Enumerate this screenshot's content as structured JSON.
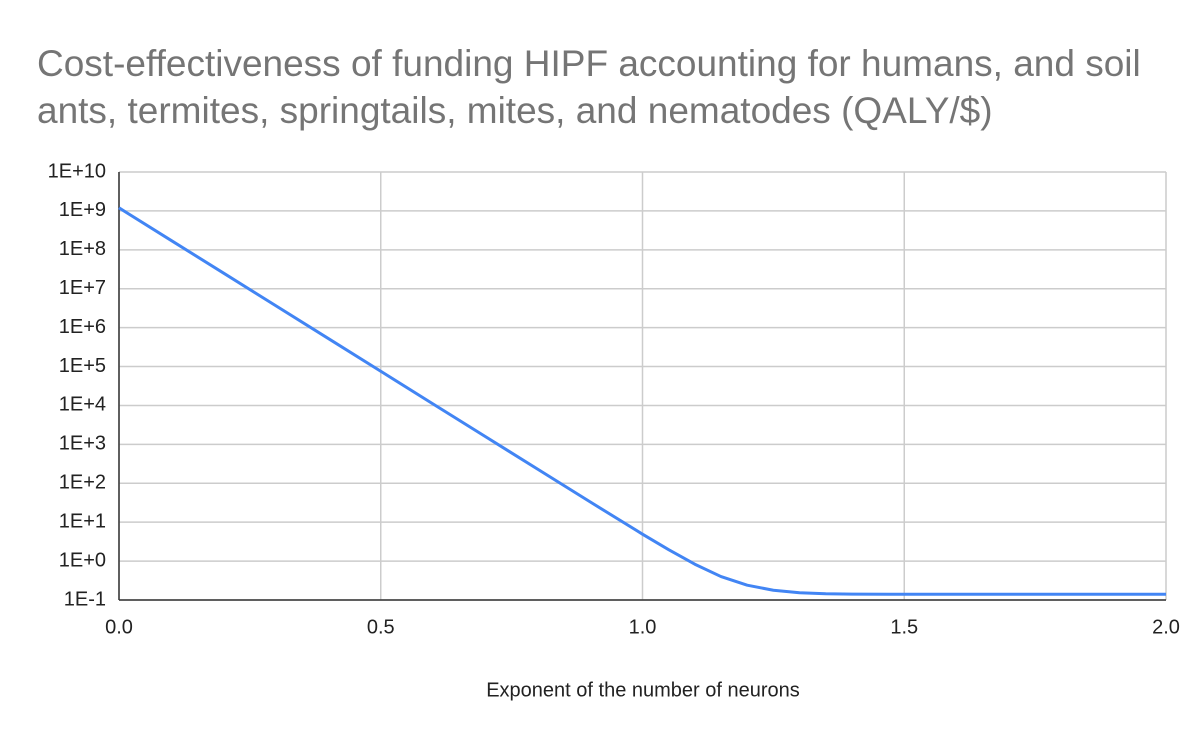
{
  "chart_data": {
    "type": "line",
    "title": "Cost-effectiveness of funding HIPF accounting for humans, and soil ants, termites, springtails, mites, and nematodes (QALY/$)",
    "x_label": "Exponent of the number of neurons",
    "x": [
      0,
      0.1,
      0.2,
      0.3,
      0.4,
      0.5,
      0.6,
      0.7,
      0.8,
      0.9,
      1.0,
      1.05,
      1.1,
      1.15,
      1.2,
      1.25,
      1.3,
      1.35,
      1.4,
      1.5,
      1.6,
      1.7,
      1.8,
      1.9,
      2.0
    ],
    "series": [
      {
        "color": "#4285f4",
        "values": [
          1200000000,
          173000000,
          25100000,
          3620000,
          524000,
          75700,
          10900,
          1582,
          229,
          33.2,
          4.92,
          1.96,
          0.83,
          0.4,
          0.24,
          0.178,
          0.154,
          0.145,
          0.142,
          0.14,
          0.14,
          0.14,
          0.14,
          0.14,
          0.14
        ]
      }
    ],
    "xlim": [
      0,
      2
    ],
    "xticks": [
      {
        "value": 0,
        "label": "0.0"
      },
      0.5,
      {
        "value": 1,
        "label": "1.0"
      },
      1.5,
      {
        "value": 2,
        "label": "2.0"
      }
    ],
    "ylim": [
      0.1,
      10000000000
    ],
    "yticks": [
      {
        "value": 0.1,
        "label": "1E-1"
      },
      {
        "value": 1,
        "label": "1E+0"
      },
      {
        "value": 10,
        "label": "1E+1"
      },
      {
        "value": 100,
        "label": "1E+2"
      },
      {
        "value": 1000,
        "label": "1E+3"
      },
      {
        "value": 10000,
        "label": "1E+4"
      },
      {
        "value": 100000,
        "label": "1E+5"
      },
      {
        "value": 1000000,
        "label": "1E+6"
      },
      {
        "value": 10000000,
        "label": "1E+7"
      },
      {
        "value": 100000000,
        "label": "1E+8"
      },
      {
        "value": 1000000000,
        "label": "1E+9"
      },
      {
        "value": 10000000000,
        "label": "1E+10"
      }
    ],
    "y_scale": "log",
    "grid": true
  }
}
